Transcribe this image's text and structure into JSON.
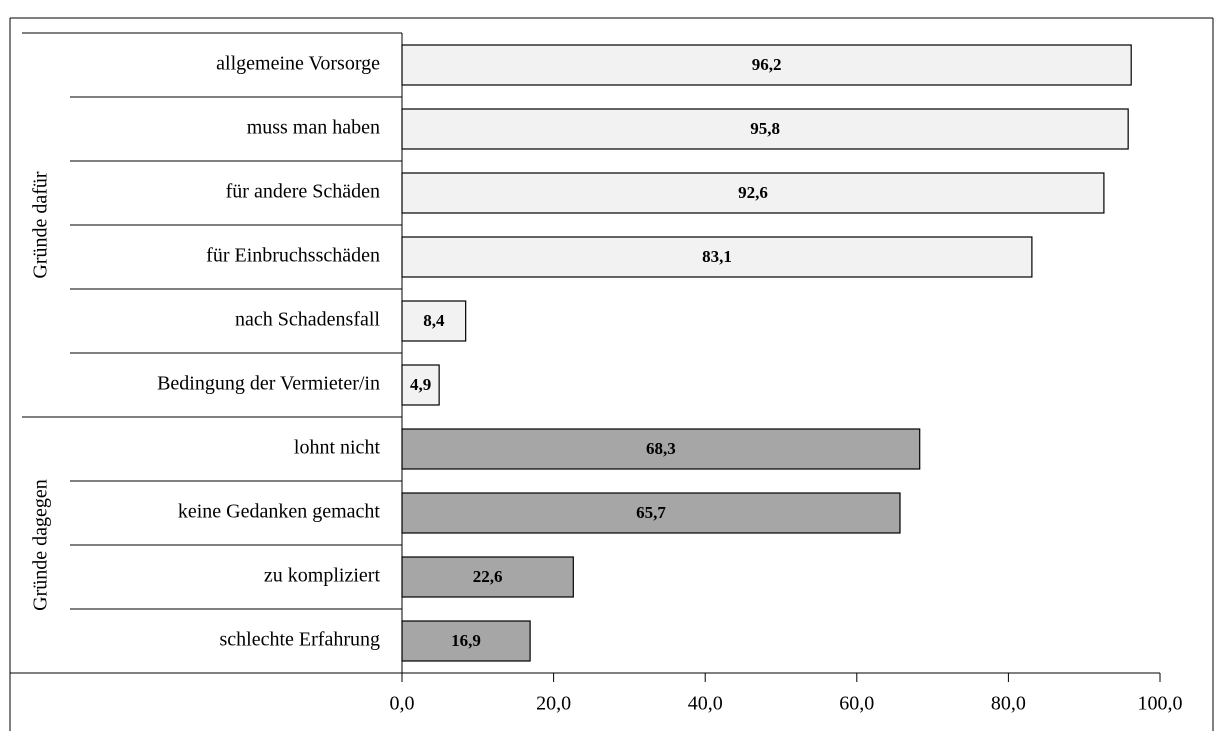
{
  "chart_data": {
    "type": "bar",
    "orientation": "horizontal",
    "groups": [
      {
        "name": "Gründe dafür",
        "color": "#f2f2f2",
        "categories": [
          "allgemeine Vorsorge",
          "muss man haben",
          "für andere Schäden",
          "für Einbruchsschäden",
          "nach Schadensfall",
          "Bedingung der Vermieter/in"
        ],
        "values": [
          96.2,
          95.8,
          92.6,
          83.1,
          8.4,
          4.9
        ],
        "value_labels": [
          "96,2",
          "95,8",
          "92,6",
          "83,1",
          "8,4",
          "4,9"
        ]
      },
      {
        "name": "Gründe dagegen",
        "color": "#a6a6a6",
        "categories": [
          "lohnt nicht",
          "keine Gedanken gemacht",
          "zu kompliziert",
          "schlechte Erfahrung"
        ],
        "values": [
          68.3,
          65.7,
          22.6,
          16.9
        ],
        "value_labels": [
          "68,3",
          "65,7",
          "22,6",
          "16,9"
        ]
      }
    ],
    "xlim": [
      0,
      100
    ],
    "xticks": [
      {
        "value": 0,
        "label": "0,0"
      },
      {
        "value": 20,
        "label": "20,0"
      },
      {
        "value": 40,
        "label": "40,0"
      },
      {
        "value": 60,
        "label": "60,0"
      },
      {
        "value": 80,
        "label": "80,0"
      },
      {
        "value": 100,
        "label": "100,0"
      }
    ]
  }
}
